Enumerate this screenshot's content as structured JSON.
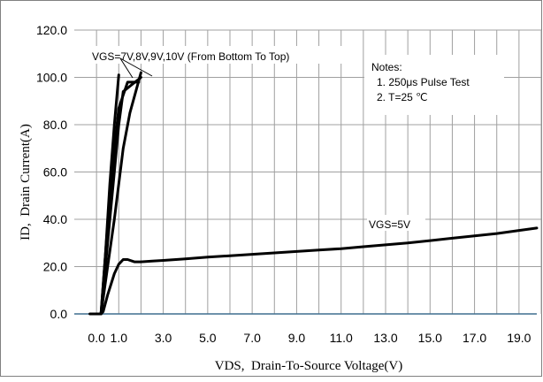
{
  "chart_data": {
    "type": "line",
    "xlabel": "VDS,  Drain-To-Source Voltage(V)",
    "ylabel": "ID,  Drain Current(A)",
    "xlim": [
      -1,
      20
    ],
    "ylim": [
      0,
      120
    ],
    "x_ticks": [
      {
        "value": 0,
        "label": "0.0"
      },
      {
        "value": 1,
        "label": "1.0"
      },
      {
        "value": 3,
        "label": "3.0"
      },
      {
        "value": 5,
        "label": "5.0"
      },
      {
        "value": 7,
        "label": "7.0"
      },
      {
        "value": 9,
        "label": "9.0"
      },
      {
        "value": 11,
        "label": "11.0"
      },
      {
        "value": 13,
        "label": "13.0"
      },
      {
        "value": 15,
        "label": "15.0"
      },
      {
        "value": 17,
        "label": "17.0"
      },
      {
        "value": 19,
        "label": "19.0"
      }
    ],
    "y_ticks": [
      {
        "value": 0,
        "label": "0.0"
      },
      {
        "value": 20,
        "label": "20.0"
      },
      {
        "value": 40,
        "label": "40.0"
      },
      {
        "value": 60,
        "label": "60.0"
      },
      {
        "value": 80,
        "label": "80.0"
      },
      {
        "value": 100,
        "label": "100.0"
      },
      {
        "value": 120,
        "label": "120.0"
      }
    ],
    "grid": true,
    "series": [
      {
        "name": "VGS=5V",
        "x": [
          -0.3,
          0.2,
          0.3,
          0.5,
          0.8,
          1.0,
          1.2,
          1.4,
          1.7,
          2.0,
          2.5,
          3.0,
          4.0,
          5.0,
          6.0,
          7.0,
          8.0,
          9.0,
          10.0,
          11.0,
          12.0,
          13.0,
          14.0,
          15.0,
          16.0,
          17.0,
          18.0,
          19.0,
          19.8
        ],
        "y": [
          0,
          0,
          1,
          8,
          17,
          21,
          23,
          23,
          22,
          22,
          22.3,
          22.6,
          23.3,
          24,
          24.6,
          25.2,
          25.8,
          26.4,
          27,
          27.6,
          28.4,
          29.2,
          30,
          31,
          32,
          33,
          34,
          35.3,
          36.3
        ]
      },
      {
        "name": "VGS=7V",
        "x": [
          0.2,
          0.5,
          0.8,
          1.0,
          1.2,
          1.5,
          2.0
        ],
        "y": [
          0,
          20,
          40,
          55,
          70,
          85,
          102
        ]
      },
      {
        "name": "VGS=8V",
        "x": [
          0.2,
          0.4,
          0.6,
          0.8,
          1.0,
          1.2,
          2.0
        ],
        "y": [
          0,
          20,
          40,
          60,
          80,
          94,
          100
        ]
      },
      {
        "name": "VGS=9V",
        "x": [
          0.2,
          0.4,
          0.6,
          0.8,
          1.0,
          1.4,
          1.9
        ],
        "y": [
          0,
          25,
          50,
          70,
          87,
          98,
          98
        ]
      },
      {
        "name": "VGS=10V",
        "x": [
          0.2,
          0.4,
          0.6,
          0.8,
          1.0
        ],
        "y": [
          0,
          25,
          55,
          80,
          101
        ]
      }
    ],
    "annotations": {
      "family_label": "VGS=7V,8V,9V,10V (From Bottom To Top)",
      "vgs5_label": "VGS=5V",
      "notes_title": "Notes:",
      "notes": [
        "1. 250μs  Pulse Test",
        "2. T=25 ℃"
      ]
    },
    "colors": {
      "line": "#000000",
      "grid": "#a0a0a0",
      "baseline": "#3f6f8f",
      "frame": "#808080"
    }
  }
}
